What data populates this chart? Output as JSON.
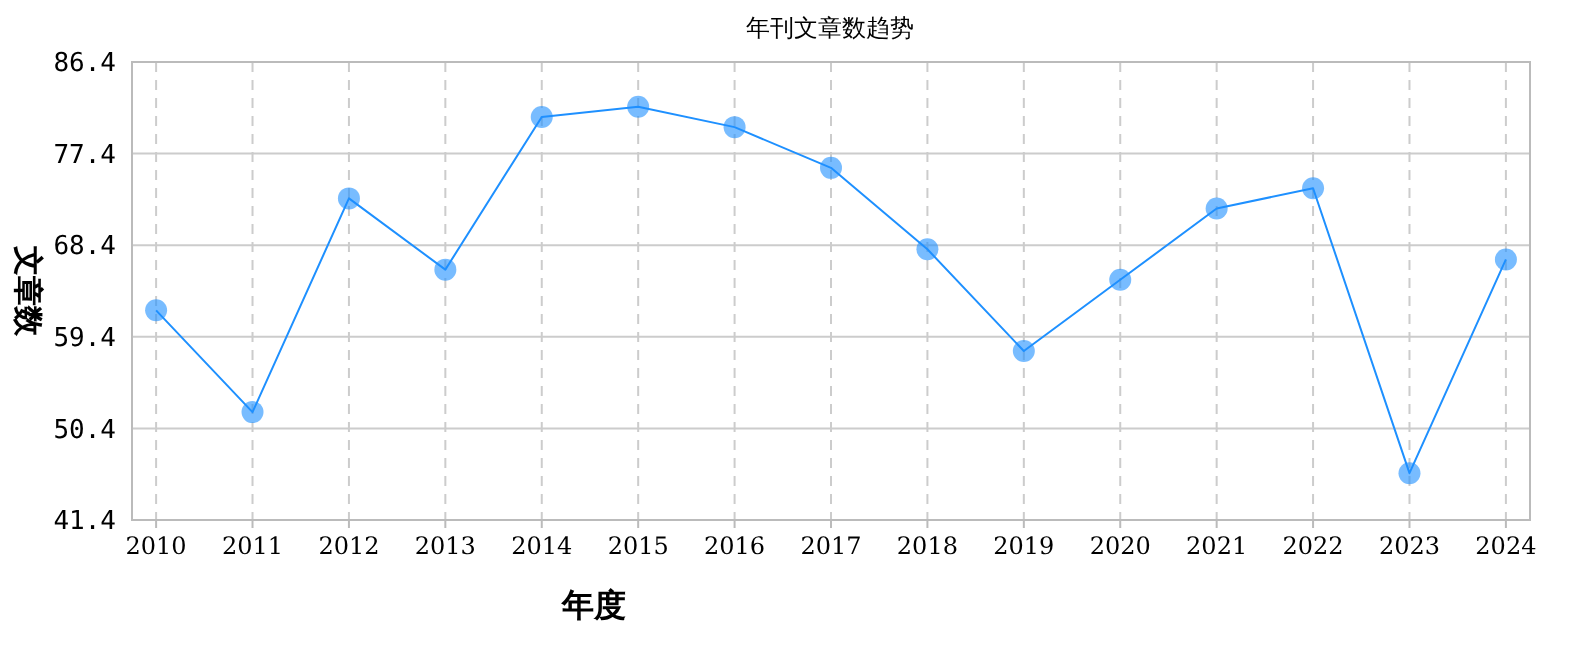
{
  "chart_data": {
    "type": "line",
    "title": "年刊文章数趋势",
    "xlabel": "年度",
    "ylabel": "文章数",
    "categories": [
      "2010",
      "2011",
      "2012",
      "2013",
      "2014",
      "2015",
      "2016",
      "2017",
      "2018",
      "2019",
      "2020",
      "2021",
      "2022",
      "2023",
      "2024"
    ],
    "series": [
      {
        "color": "#1e90ff",
        "values": [
          62,
          52,
          73,
          66,
          81,
          82,
          80,
          76,
          68,
          58,
          65,
          72,
          74,
          46,
          67
        ]
      }
    ],
    "ylim": [
      41.4,
      86.4
    ],
    "yticks": [
      41.4,
      50.4,
      59.4,
      68.4,
      77.4,
      86.4
    ],
    "grid": true,
    "marker": "circle",
    "line_style": "solid"
  }
}
